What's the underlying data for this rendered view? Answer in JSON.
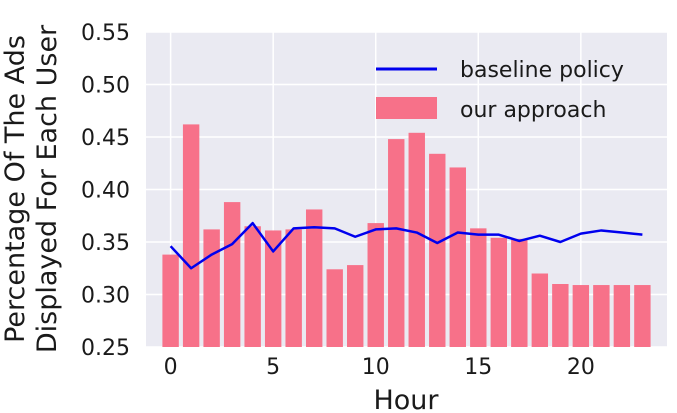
{
  "chart_data": {
    "type": "bar",
    "title": "",
    "xlabel": "Hour",
    "ylabel": [
      "Percentage Of The Ads",
      "Displayed For Each User"
    ],
    "xlim": [
      -1.2,
      24.2
    ],
    "ylim": [
      0.25,
      0.55
    ],
    "x_ticks": [
      0,
      5,
      10,
      15,
      20
    ],
    "y_ticks": [
      0.25,
      0.3,
      0.35,
      0.4,
      0.45,
      0.5,
      0.55
    ],
    "y_tick_labels": [
      "0.25",
      "0.30",
      "0.35",
      "0.40",
      "0.45",
      "0.50",
      "0.55"
    ],
    "grid": true,
    "legend_position": "top-right",
    "categories": [
      0,
      1,
      2,
      3,
      4,
      5,
      6,
      7,
      8,
      9,
      10,
      11,
      12,
      13,
      14,
      15,
      16,
      17,
      18,
      19,
      20,
      21,
      22,
      23
    ],
    "series": [
      {
        "name": "baseline policy",
        "type": "line",
        "color": "#0000ee",
        "values": [
          0.346,
          0.325,
          0.338,
          0.348,
          0.368,
          0.341,
          0.363,
          0.364,
          0.363,
          0.355,
          0.362,
          0.363,
          0.359,
          0.349,
          0.359,
          0.357,
          0.357,
          0.351,
          0.356,
          0.35,
          0.358,
          0.361,
          0.359,
          0.357
        ]
      },
      {
        "name": "our approach",
        "type": "bar",
        "color": "#f77189",
        "values": [
          0.338,
          0.462,
          0.362,
          0.388,
          0.365,
          0.361,
          0.362,
          0.381,
          0.324,
          0.328,
          0.368,
          0.448,
          0.454,
          0.434,
          0.421,
          0.363,
          0.354,
          0.353,
          0.32,
          0.31,
          0.309,
          0.309,
          0.309,
          0.309
        ]
      }
    ]
  }
}
